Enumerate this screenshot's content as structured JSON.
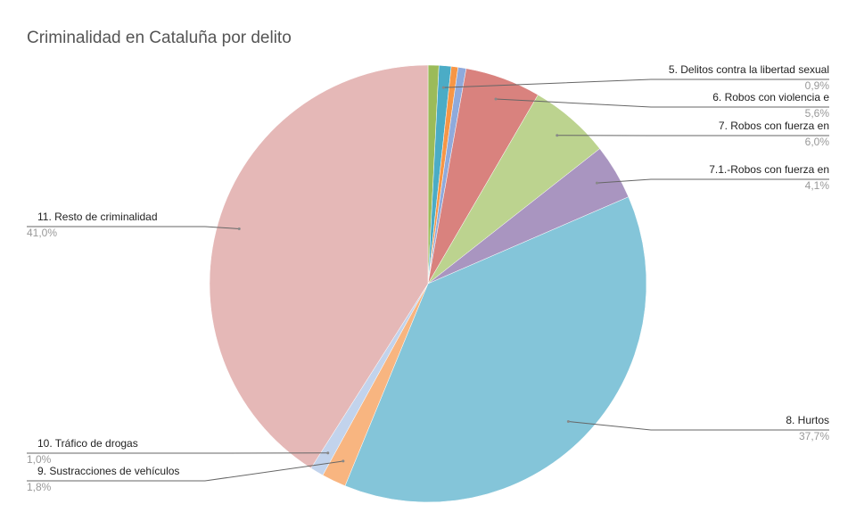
{
  "chart_data": {
    "type": "pie",
    "title": "Criminalidad en Cataluña por delito",
    "categories": [
      null,
      "5. Delitos contra la libertad sexual",
      null,
      null,
      "6. Robos con violencia e",
      "7. Robos con fuerza en",
      "7.1.-Robos con fuerza en",
      "8. Hurtos",
      "9. Sustracciones de vehículos",
      "10. Tráfico de drogas",
      "11. Resto de criminalidad"
    ],
    "values": [
      0.8,
      0.9,
      0.5,
      0.6,
      5.6,
      6.0,
      4.1,
      37.7,
      1.8,
      1.0,
      41.0
    ],
    "value_labels": [
      null,
      "0,9%",
      null,
      null,
      "5,6%",
      "6,0%",
      "4,1%",
      "37,7%",
      "1,8%",
      "1,0%",
      "41,0%"
    ],
    "colors": [
      "#9bbb59",
      "#4bacc6",
      "#f79646",
      "#8faadc",
      "#d9827e",
      "#bcd38f",
      "#a995c0",
      "#84c5d9",
      "#f8b580",
      "#c2d3ec",
      "#e5b8b7"
    ]
  }
}
